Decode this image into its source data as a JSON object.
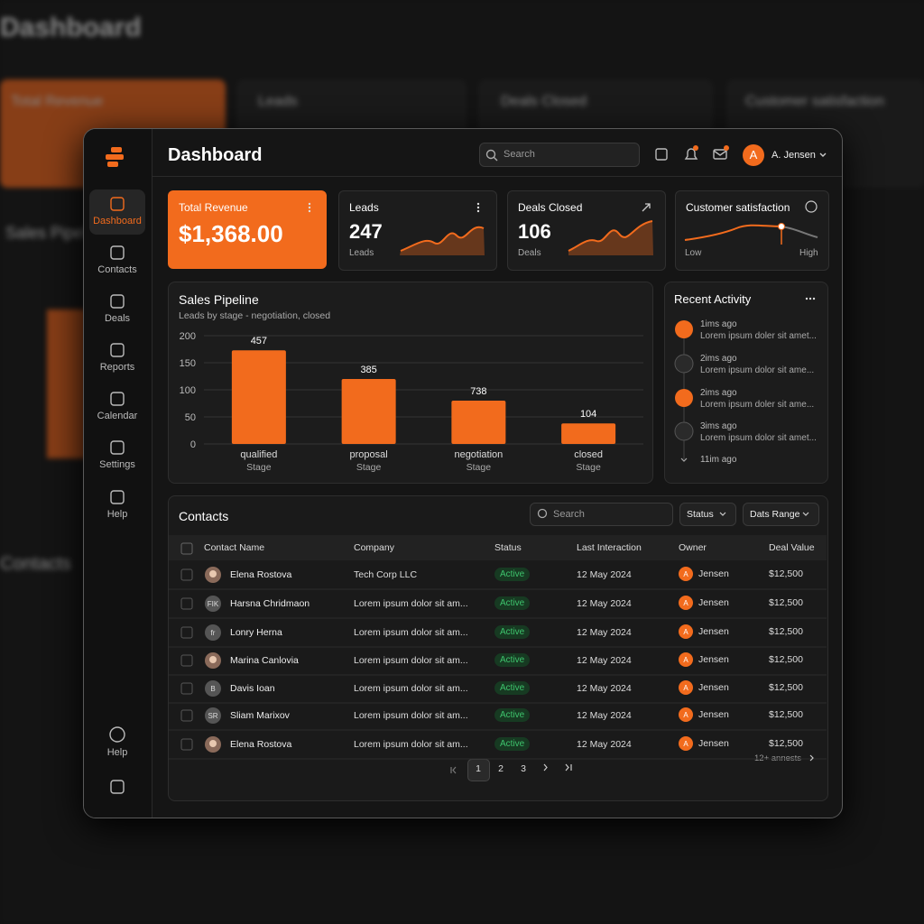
{
  "background": {
    "title": "Dashboard",
    "cards": [
      "Total Revenue",
      "Leads",
      "Deals Closed",
      "Customer satisfaction"
    ],
    "sections": [
      "Sales Pipeline",
      "Contacts"
    ]
  },
  "sidebar": {
    "items": [
      "Dashboard",
      "Contacts",
      "Deals",
      "Reports",
      "Calendar",
      "Settings",
      "Help"
    ],
    "footer": "Help"
  },
  "header": {
    "title": "Dashboard",
    "search": "Search",
    "avatar": "A",
    "user": "A. Jensen"
  },
  "cards": [
    {
      "title": "Total Revenue",
      "value": "$1,368.00"
    },
    {
      "title": "Leads",
      "value": 247,
      "caption": "Leads"
    },
    {
      "title": "Deals Closed",
      "value": 106,
      "caption": "Deals"
    },
    {
      "title": "Customer satisfaction",
      "low": "Low",
      "high": "High"
    }
  ],
  "sales_pipeline": {
    "type": "bar",
    "title": "Sales Pipeline",
    "subtitle": "Leads by stage - negotiation, closed",
    "categories": [
      "qualified",
      "proposal",
      "negotiation",
      "closed"
    ],
    "xlabel": "Stage",
    "values": [
      173,
      120,
      80,
      38
    ],
    "lead_counts": [
      457,
      385,
      738,
      104
    ],
    "color": "#f26b1d",
    "ylim": [
      0,
      200
    ],
    "yticks": [
      0,
      50,
      100,
      150,
      200
    ],
    "grid": true
  },
  "recent_activity": {
    "title": "Recent Activity",
    "items": [
      {
        "time": "1ims ago",
        "text": "Lorem ipsum doler sit amet..."
      },
      {
        "time": "2ims ago",
        "text": "Lorem ipsum dolor sit ame..."
      },
      {
        "time": "2ims ago",
        "text": "Lorem ipsum doler sit ame..."
      },
      {
        "time": "3ims ago",
        "text": "Lorem ipsum dolor sit amet..."
      },
      {
        "time": "11im ago"
      }
    ]
  },
  "contacts": {
    "title": "Contacts",
    "search": "Search",
    "filters": [
      "Status",
      "Dats Range"
    ],
    "columns": [
      "Contact Name",
      "Company",
      "Status",
      "Last Interaction",
      "Owner",
      "Deal Value"
    ],
    "rows": [
      {
        "name": "Elena Rostova",
        "company": "Tech Corp LLC",
        "status": "Active",
        "date": "12 May 2024",
        "owner_avatar": "A",
        "owner": "Jensen",
        "deal": "$12,500"
      },
      {
        "name": "Harsna Chridmaon",
        "initials": "FIK",
        "company": "Lorem ipsum dolor sit am...",
        "status": "Active",
        "date": "12 May 2024",
        "owner_avatar": "A",
        "owner": "Jensen",
        "deal": "$12,500"
      },
      {
        "name": "Lonry Herna",
        "initials": "fr",
        "company": "Lorem ipsum dolor sit am...",
        "status": "Active",
        "date": "12 May 2024",
        "owner_avatar": "A",
        "owner": "Jensen",
        "deal": "$12,500"
      },
      {
        "name": "Marina Canlovia",
        "company": "Lorem ipsum dolor sit am...",
        "status": "Active",
        "date": "12 May 2024",
        "owner_avatar": "A",
        "owner": "Jensen",
        "deal": "$12,500"
      },
      {
        "name": "Davis Ioan",
        "initials": "B",
        "company": "Lorem ipsum dolor sit am...",
        "status": "Active",
        "date": "12 May 2024",
        "owner_avatar": "A",
        "owner": "Jensen",
        "deal": "$12,500"
      },
      {
        "name": "Sliam Marixov",
        "initials": "SR",
        "company": "Lorem ipsum dolor sit am...",
        "status": "Active",
        "date": "12 May 2024",
        "owner_avatar": "A",
        "owner": "Jensen",
        "deal": "$12,500"
      },
      {
        "name": "Elena Rostova",
        "company": "Lorem ipsum dolor sit am...",
        "status": "Active",
        "date": "12 May 2024",
        "owner_avatar": "A",
        "owner": "Jensen",
        "deal": "$12,500"
      }
    ],
    "pages": [
      "1",
      "2",
      "3"
    ],
    "footer": "12+ annests"
  }
}
